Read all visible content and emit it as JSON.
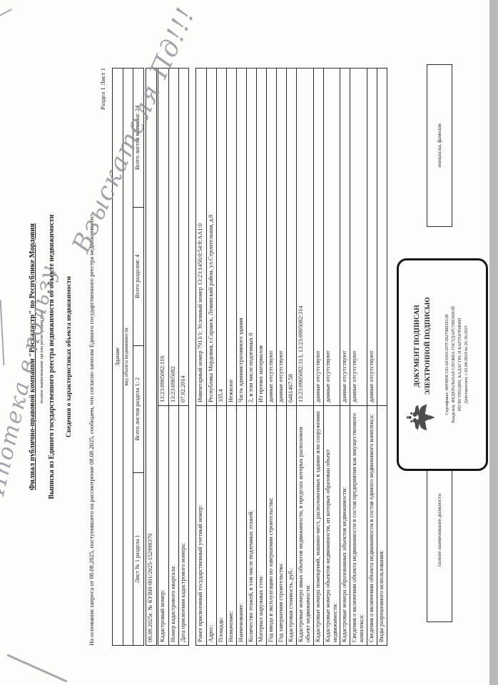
{
  "handwriting": {
    "line1": "Ипотека в пользу",
    "line2": "Взыскателя Пд!!!"
  },
  "header": {
    "org": "Филиал публично-правовой компании \"Роскадастр\" по Республике Мордовия",
    "org_caption": "полное наименование органа регистрации прав",
    "title": "Выписка из Единого государственного реестра недвижимости об объекте недвижимости",
    "subtitle": "Сведения о характеристиках объекта недвижимости",
    "basis": "На основании запроса от 08.08.2025, поступившего на рассмотрение 08.08.2025, сообщаем, что согласно записям Единого государственного реестра недвижимости:",
    "section_sheet": "Раздел 1 Лист 1"
  },
  "object_table": {
    "object_type": "Здание",
    "object_type_caption": "вид объекта недвижимости",
    "sheet_cells": [
      "Лист № 1 раздела 1",
      "Всего листов раздела 1: 2",
      "Всего разделов: 4",
      "Всего листов выписки: 24"
    ],
    "request_number": "08.08.2025г. № КУВИ-001/2025-152998370",
    "rows": [
      {
        "label": "Кадастровый номер:",
        "value": "13:23:0905082:116"
      },
      {
        "label": "Номер кадастрового квартала:",
        "value": "13:23:0905082"
      },
      {
        "label": "Дата присвоения кадастрового номера:",
        "value": "07.02.2014"
      }
    ]
  },
  "details_table": {
    "rows": [
      {
        "label": "Ранее присвоенный государственный учетный номер:",
        "value": "Инвентарный номер 7913/1; Условный номер 13:23:1456:0:54:8:АА1:0"
      },
      {
        "label": "Адрес:",
        "value": "Республика Мордовия, г.Саранск, Ленинский район, ул.Строительная, д.8"
      },
      {
        "label": "Площадь:",
        "value": "335.4"
      },
      {
        "label": "Назначение:",
        "value": "Нежилое"
      },
      {
        "label": "Наименование:",
        "value": "Часть административного здания"
      },
      {
        "label": "Количество этажей, в том числе подземных этажей:",
        "value": "2, в том числе подземных 0"
      },
      {
        "label": "Материал наружных стен:",
        "value": "Из прочих материалов"
      },
      {
        "label": "Год ввода в эксплуатацию по завершении строительства:",
        "value": "данные отсутствуют"
      },
      {
        "label": "Год завершения строительства:",
        "value": "данные отсутствуют"
      },
      {
        "label": "Кадастровая стоимость, руб.:",
        "value": "6461467.58"
      },
      {
        "label": "Кадастровые номера иных объектов недвижимости, в пределах которых расположен объект недвижимости:",
        "value": "13:23:0905082:313, 13:23:0905082:314"
      },
      {
        "label": "Кадастровые номера помещений, машино-мест, расположенных в здании или сооружении:",
        "value": "данные отсутствуют"
      },
      {
        "label": "Кадастровые номера объектов недвижимости, из которых образован объект недвижимости:",
        "value": "данные отсутствуют"
      },
      {
        "label": "Кадастровые номера образованных объектов недвижимости:",
        "value": "данные отсутствуют"
      },
      {
        "label": "Сведения о включении объекта недвижимости в состав предприятия как имущественного комплекса:",
        "value": "данные отсутствуют"
      },
      {
        "label": "Сведения о включении объекта недвижимости в состав единого недвижимого комплекса:",
        "value": "данные отсутствуют"
      },
      {
        "label": "Виды разрешенного использования:",
        "value": ""
      }
    ]
  },
  "signature": {
    "left_label": "полное наименование должности",
    "right_label": "инициалы, фамилия"
  },
  "stamp": {
    "line1": "ДОКУМЕНТ ПОДПИСАН",
    "line2": "ЭЛЕКТРОННОЙ ПОДПИСЬЮ",
    "certificate": "Сертификат: 00F0B9C181A0339A397F1B279803931B",
    "owner": "Владелец: ФЕДЕРАЛЬНАЯ СЛУЖБА ГОСУДАРСТВЕННОЙ",
    "owner2": "РЕГИСТРАЦИИ, КАДАСТРА И КАРТОГРАФИИ",
    "validity": "Действителен: с 02.08.2024 по 26.10.2025"
  }
}
